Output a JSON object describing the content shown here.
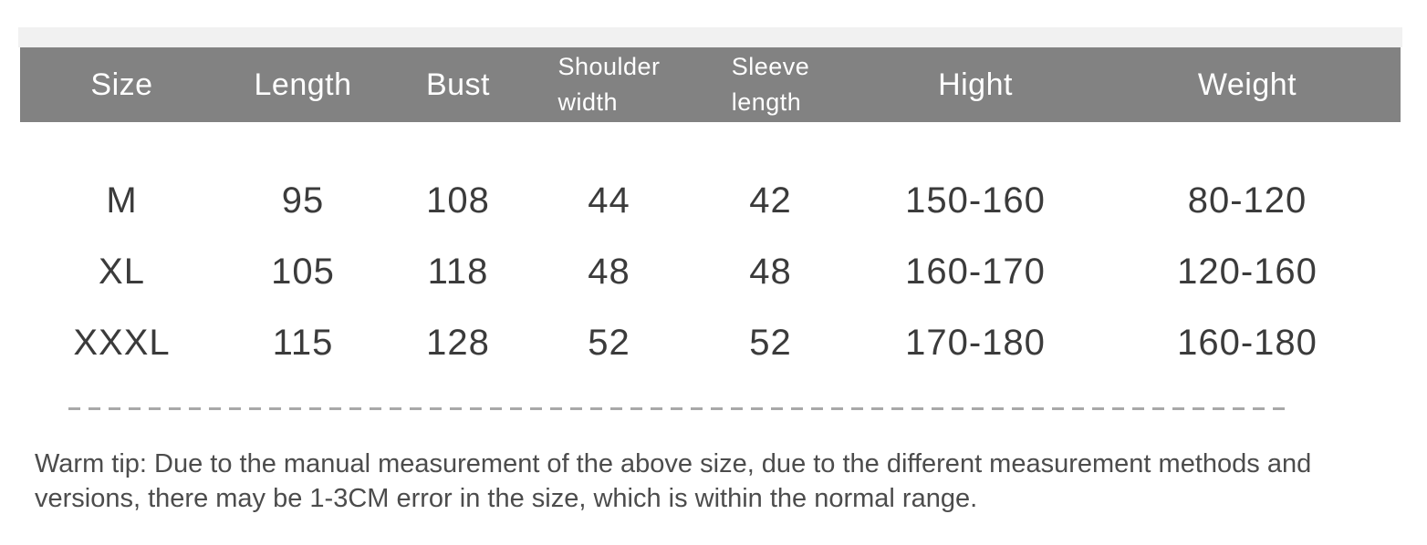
{
  "colors": {
    "header_background": "#828282",
    "header_text": "#ffffff",
    "top_strip": "#f1f1f1",
    "body_text": "#3b3b3b",
    "note_text": "#4c4c4c",
    "divider": "#a8a8a8"
  },
  "table": {
    "columns": [
      {
        "label": "Size"
      },
      {
        "label": "Length"
      },
      {
        "label": "Bust"
      },
      {
        "label": "Shoulder width",
        "lines": [
          "Shoulder",
          "width"
        ]
      },
      {
        "label": "Sleeve length",
        "lines": [
          "Sleeve",
          "length"
        ]
      },
      {
        "label": "Hight"
      },
      {
        "label": "Weight"
      }
    ],
    "rows": [
      [
        "M",
        "95",
        "108",
        "44",
        "42",
        "150-160",
        "80-120"
      ],
      [
        "XL",
        "105",
        "118",
        "48",
        "48",
        "160-170",
        "120-160"
      ],
      [
        "XXXL",
        "115",
        "128",
        "52",
        "52",
        "170-180",
        "160-180"
      ]
    ]
  },
  "note": "Warm tip: Due to the manual measurement of the above size, due to the different measurement methods and versions, there may be 1-3CM error in the size, which is within the normal range."
}
